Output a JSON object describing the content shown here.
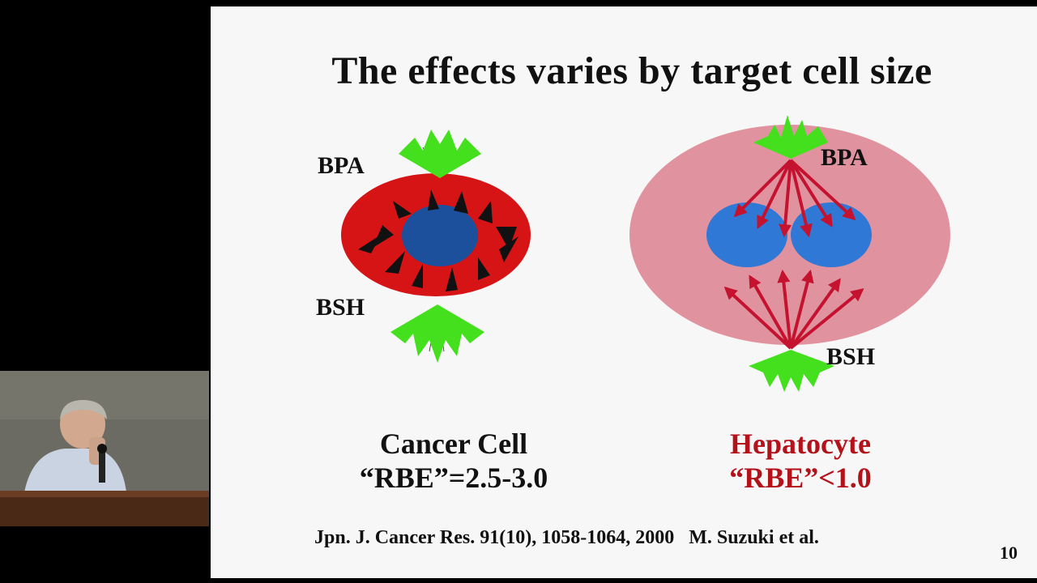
{
  "slide": {
    "title": "The effects varies by target cell size",
    "left_panel": {
      "label_top": "BPA",
      "label_bottom": "BSH",
      "caption_line1": "Cancer Cell",
      "caption_line2": "“RBE”=2.5-3.0",
      "colors": {
        "cell": "#d61416",
        "nucleus": "#1c4f9c",
        "arrows": "#111111",
        "source": "#44e01e"
      }
    },
    "right_panel": {
      "label_top": "BPA",
      "label_bottom": "BSH",
      "caption_line1": "Hepatocyte",
      "caption_line2": "“RBE”<1.0",
      "colors": {
        "cell": "#e0939f",
        "nucleus": "#2f78d6",
        "arrows": "#c4122f",
        "source": "#44e01e"
      }
    },
    "reference": "Jpn. J. Cancer Res. 91(10), 1058-1064, 2000   M. Suzuki et al.",
    "page_number": "10"
  }
}
